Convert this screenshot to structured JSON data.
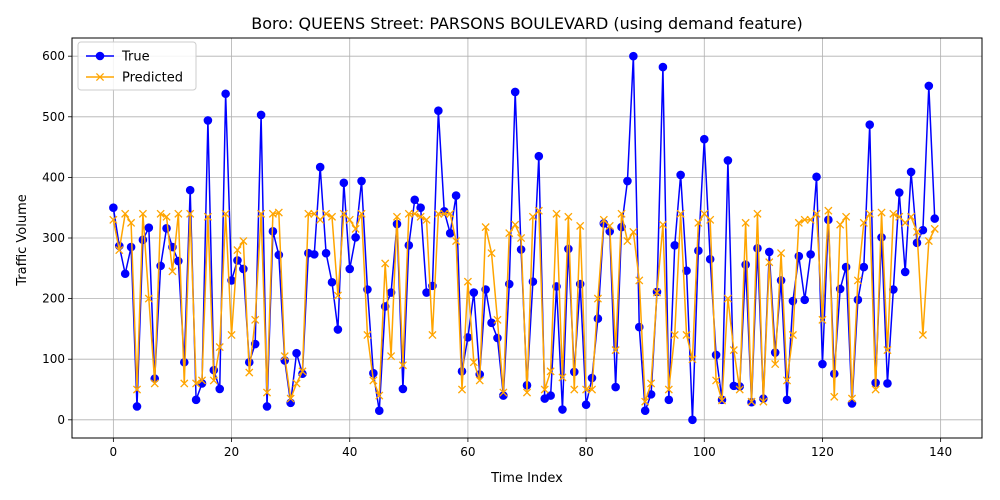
{
  "chart_data": {
    "type": "line",
    "title": "Boro: QUEENS Street: PARSONS BOULEVARD (using demand feature)",
    "xlabel": "Time Index",
    "ylabel": "Traffic Volume",
    "xlim": [
      -7,
      147
    ],
    "ylim": [
      -30,
      630
    ],
    "xticks": [
      0,
      20,
      40,
      60,
      80,
      100,
      120,
      140
    ],
    "yticks": [
      0,
      100,
      200,
      300,
      400,
      500,
      600
    ],
    "grid": true,
    "legend_position": "top-left",
    "x": [
      0,
      1,
      2,
      3,
      4,
      5,
      6,
      7,
      8,
      9,
      10,
      11,
      12,
      13,
      14,
      15,
      16,
      17,
      18,
      19,
      20,
      21,
      22,
      23,
      24,
      25,
      26,
      27,
      28,
      29,
      30,
      31,
      32,
      33,
      34,
      35,
      36,
      37,
      38,
      39,
      40,
      41,
      42,
      43,
      44,
      45,
      46,
      47,
      48,
      49,
      50,
      51,
      52,
      53,
      54,
      55,
      56,
      57,
      58,
      59,
      60,
      61,
      62,
      63,
      64,
      65,
      66,
      67,
      68,
      69,
      70,
      71,
      72,
      73,
      74,
      75,
      76,
      77,
      78,
      79,
      80,
      81,
      82,
      83,
      84,
      85,
      86,
      87,
      88,
      89,
      90,
      91,
      92,
      93,
      94,
      95,
      96,
      97,
      98,
      99,
      100,
      101,
      102,
      103,
      104,
      105,
      106,
      107,
      108,
      109,
      110,
      111,
      112,
      113,
      114,
      115,
      116,
      117,
      118,
      119,
      120,
      121,
      122,
      123,
      124,
      125,
      126,
      127,
      128,
      129,
      130,
      131,
      132,
      133,
      134,
      135,
      136,
      137,
      138,
      139
    ],
    "series": [
      {
        "name": "True",
        "color": "#0000ff",
        "marker": "circle",
        "values": [
          350,
          287,
          241,
          285,
          22,
          297,
          317,
          68,
          254,
          316,
          285,
          262,
          95,
          379,
          33,
          60,
          494,
          82,
          51,
          538,
          230,
          263,
          249,
          95,
          125,
          503,
          22,
          311,
          272,
          98,
          28,
          110,
          76,
          275,
          273,
          417,
          275,
          227,
          149,
          391,
          249,
          301,
          394,
          215,
          77,
          15,
          187,
          210,
          323,
          51,
          288,
          363,
          350,
          210,
          221,
          510,
          344,
          308,
          370,
          80,
          136,
          210,
          75,
          215,
          160,
          135,
          40,
          224,
          541,
          281,
          57,
          228,
          435,
          35,
          40,
          220,
          17,
          282,
          79,
          224,
          25,
          69,
          167,
          324,
          311,
          54,
          318,
          394,
          600,
          153,
          15,
          42,
          211,
          582,
          33,
          288,
          404,
          246,
          0,
          279,
          463,
          265,
          107,
          33,
          428,
          56,
          55,
          256,
          29,
          283,
          35,
          277,
          111,
          230,
          33,
          196,
          270,
          198,
          273,
          401,
          92,
          330,
          76,
          216,
          252,
          27,
          198,
          252,
          487,
          61,
          301,
          60,
          215,
          375,
          244,
          409,
          292,
          313,
          551,
          332
        ]
      },
      {
        "name": "Predicted",
        "color": "#ffa500",
        "marker": "x",
        "values": [
          330,
          280,
          340,
          325,
          50,
          340,
          200,
          60,
          340,
          335,
          245,
          340,
          60,
          340,
          60,
          65,
          335,
          65,
          120,
          340,
          140,
          280,
          295,
          78,
          165,
          340,
          45,
          340,
          342,
          105,
          35,
          60,
          80,
          340,
          340,
          330,
          340,
          335,
          205,
          340,
          330,
          315,
          340,
          140,
          65,
          40,
          258,
          105,
          335,
          90,
          340,
          340,
          335,
          330,
          140,
          340,
          340,
          340,
          295,
          50,
          228,
          95,
          65,
          318,
          275,
          165,
          45,
          308,
          322,
          300,
          45,
          335,
          345,
          50,
          80,
          340,
          70,
          335,
          50,
          320,
          50,
          50,
          200,
          330,
          320,
          115,
          340,
          295,
          310,
          230,
          30,
          60,
          210,
          322,
          50,
          140,
          340,
          140,
          100,
          325,
          340,
          330,
          65,
          32,
          200,
          115,
          50,
          325,
          30,
          340,
          30,
          260,
          92,
          275,
          65,
          140,
          325,
          330,
          330,
          340,
          165,
          345,
          38,
          322,
          335,
          35,
          230,
          325,
          340,
          50,
          342,
          115,
          340,
          335,
          325,
          335,
          310,
          140,
          295,
          315
        ]
      }
    ]
  }
}
